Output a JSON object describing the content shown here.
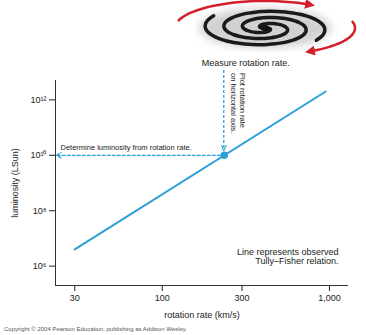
{
  "chart_data": {
    "type": "line",
    "x_label": "rotation rate (km/s)",
    "y_label": "luminosity (LSun)",
    "x": [
      30,
      950
    ],
    "values": [
      4000000,
      2000000000000
    ],
    "color": "#2e9fd8",
    "log": true,
    "grid": false,
    "xlim": [
      23,
      1300
    ],
    "ylim": [
      200000,
      5000000000000
    ],
    "xticks": [
      30,
      100,
      300,
      {
        "value": 1000,
        "label": "1,000"
      }
    ],
    "yticks": [
      {
        "value": 1000000,
        "label": "10⁶"
      },
      {
        "value": 100000000,
        "label": "10⁸"
      },
      {
        "value": 10000000000,
        "label": "10¹⁰"
      },
      {
        "value": 1000000000000,
        "label": "10¹²"
      }
    ],
    "highlight": {
      "x": 235,
      "y": 10000000000
    },
    "annotations": {
      "measure": "Measure rotation rate.",
      "plot": "Plot rotation rate on horizontal axis.",
      "determine": "Determine luminosity from rotation rate.",
      "line": "Line represents observed Tully–Fisher relation."
    },
    "copyright": "Copyright © 2004 Pearson Education, publishing as Addison Wesley."
  }
}
